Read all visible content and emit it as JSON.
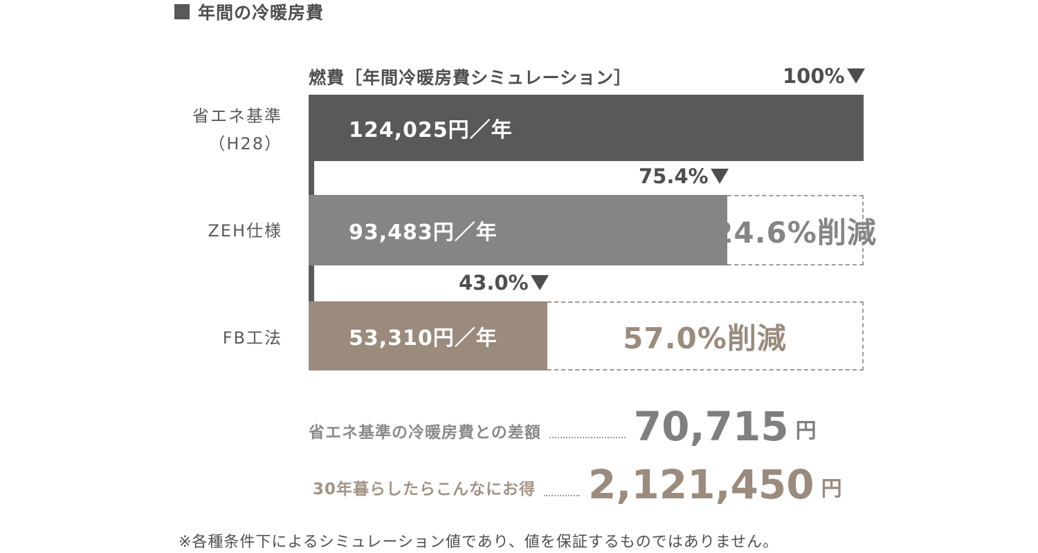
{
  "heading": {
    "text": "年間の冷暖房費"
  },
  "chart_data": {
    "type": "bar",
    "orientation": "horizontal",
    "title": "燃費［年間冷暖房費シミュレーション］",
    "unit": "円／年",
    "categories": [
      "省エネ基準（H28）",
      "ZEH仕様",
      "FB工法"
    ],
    "values": [
      124025,
      93483,
      53310
    ],
    "percent_labels": [
      "100%",
      "75.4%",
      "43.0%"
    ],
    "reduction_labels": [
      "",
      "24.6%削減",
      "57.0%削減"
    ],
    "colors": [
      "#5a5959",
      "#858585",
      "#9b8b7d"
    ]
  },
  "rows": [
    {
      "label_lines": [
        "省エネ基準",
        "（H28）"
      ],
      "value_text": "124,025円／年",
      "percent": "100%",
      "reduction": ""
    },
    {
      "label_lines": [
        "ZEH仕様"
      ],
      "value_text": "93,483円／年",
      "percent": "75.4%",
      "reduction": "24.6%削減"
    },
    {
      "label_lines": [
        "FB工法"
      ],
      "value_text": "53,310円／年",
      "percent": "43.0%",
      "reduction": "57.0%削減"
    }
  ],
  "summary": {
    "difference_label": "省エネ基準の冷暖房費との差額",
    "difference_value": "70,715",
    "difference_unit": "円",
    "thirty_year_label": "30年暮らしたらこんなにお得",
    "thirty_year_value": "2,121,450",
    "thirty_year_unit": "円"
  },
  "colors": {
    "dark": "#5a5959",
    "gray": "#858585",
    "brown": "#9b8b7d"
  },
  "footnote": "※各種条件下によるシミュレーション値であり、値を保証するものではありません。"
}
